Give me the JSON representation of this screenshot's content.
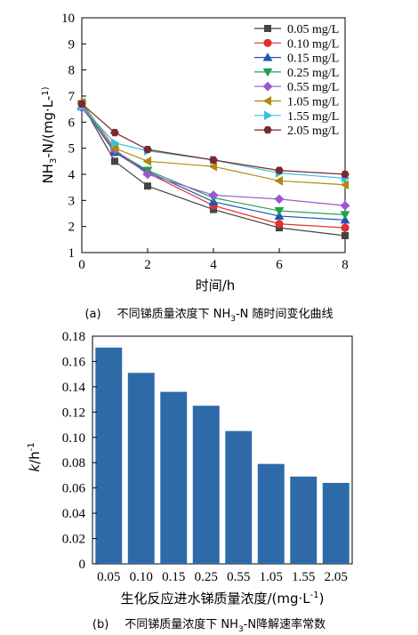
{
  "chart_data": [
    {
      "type": "line",
      "panel": "(a)",
      "caption": "不同锑质量浓度下 NH3-N 随时间变化曲线",
      "xlabel": "时间/h",
      "ylabel": "NH3-N/(mg·L-1)",
      "xlim": [
        0,
        8
      ],
      "ylim": [
        1,
        10
      ],
      "xticks": [
        0,
        2,
        4,
        6,
        8
      ],
      "yticks": [
        1,
        2,
        3,
        4,
        5,
        6,
        7,
        8,
        9,
        10
      ],
      "grid": false,
      "legend_position": "top-right",
      "x": [
        0,
        1,
        2,
        4,
        6,
        8
      ],
      "series": [
        {
          "name": "0.05 mg/L",
          "color": "#444444",
          "marker": "square",
          "values": [
            6.7,
            4.5,
            3.55,
            2.65,
            1.95,
            1.65
          ]
        },
        {
          "name": "0.10 mg/L",
          "color": "#e03030",
          "marker": "circle",
          "values": [
            6.7,
            4.85,
            4.05,
            2.8,
            2.1,
            1.95
          ]
        },
        {
          "name": "0.15 mg/L",
          "color": "#1f55b5",
          "marker": "triangle-up",
          "values": [
            6.6,
            4.85,
            4.1,
            2.95,
            2.4,
            2.25
          ]
        },
        {
          "name": "0.25 mg/L",
          "color": "#1fa050",
          "marker": "triangle-down",
          "values": [
            6.7,
            4.9,
            4.15,
            3.1,
            2.6,
            2.45
          ]
        },
        {
          "name": "0.55 mg/L",
          "color": "#9b59d0",
          "marker": "diamond",
          "values": [
            6.55,
            4.95,
            4.0,
            3.2,
            3.05,
            2.8
          ]
        },
        {
          "name": "1.05 mg/L",
          "color": "#b08a10",
          "marker": "triangle-left",
          "values": [
            6.75,
            5.0,
            4.5,
            4.3,
            3.75,
            3.6
          ]
        },
        {
          "name": "1.55 mg/L",
          "color": "#3cc0e0",
          "marker": "triangle-right",
          "values": [
            6.6,
            5.2,
            4.9,
            4.55,
            4.05,
            3.85
          ]
        },
        {
          "name": "2.05 mg/L",
          "color": "#7a2a2a",
          "marker": "hexagon",
          "values": [
            6.7,
            5.6,
            4.95,
            4.55,
            4.15,
            4.0
          ]
        }
      ]
    },
    {
      "type": "bar",
      "panel": "(b)",
      "caption": "不同锑质量浓度下 NH3-N降解速率常数",
      "xlabel": "生化反应进水锑质量浓度/(mg·L-1)",
      "ylabel": "k/h-1",
      "ylim": [
        0,
        0.18
      ],
      "yticks": [
        "0",
        "0.02",
        "0.04",
        "0.06",
        "0.08",
        "0.10",
        "0.12",
        "0.14",
        "0.16",
        "0.18"
      ],
      "grid": false,
      "color": "#2e6aa7",
      "categories": [
        "0.05",
        "0.10",
        "0.15",
        "0.25",
        "0.55",
        "1.05",
        "1.55",
        "2.05"
      ],
      "values": [
        0.171,
        0.151,
        0.136,
        0.125,
        0.105,
        0.079,
        0.069,
        0.064
      ]
    }
  ]
}
